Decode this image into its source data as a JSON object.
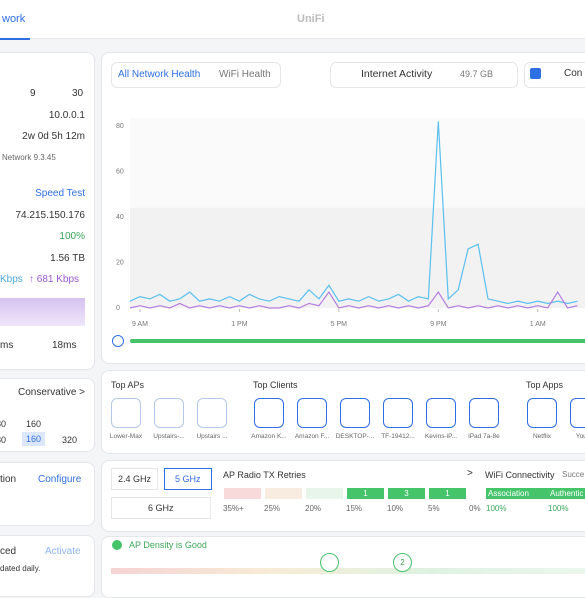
{
  "top_bar": {
    "tab": "work",
    "brand": "UniFi"
  },
  "left_panel": {
    "clients": "9",
    "aps": "30",
    "gateway_ip": "10.0.0.1",
    "uptime": "2w 0d 5h 12m",
    "version": "Network 9.3.45",
    "speed_test": "Speed Test",
    "wan_ip": "74.215.150.176",
    "availability": "100%",
    "usage": "1.56 TB",
    "download": "Kbps",
    "upload": "↑ 681 Kbps",
    "latency_a": "ms",
    "latency_b": "18ms",
    "mode": "Conservative >",
    "channels_a": [
      "80",
      "160"
    ],
    "channels_b": [
      "80",
      "160",
      "320"
    ],
    "section_a": "tion",
    "configure": "Configure",
    "section_b": "ced",
    "activate": "Activate",
    "note": "dated daily."
  },
  "health_tabs": [
    "All Network Health",
    "WiFi Health"
  ],
  "activity": {
    "label": "Internet Activity",
    "total": "49.7 GB",
    "compare": "Con"
  },
  "chart_data": {
    "type": "line",
    "xlim": [
      8.6,
      26.9
    ],
    "ylim": [
      0,
      80
    ],
    "yticks": [
      0,
      20,
      40,
      60,
      80
    ],
    "xticks": [
      {
        "value": 9,
        "label": "9 AM"
      },
      {
        "value": 13,
        "label": "1 PM"
      },
      {
        "value": 17,
        "label": "5 PM"
      },
      {
        "value": 21,
        "label": "9 PM"
      },
      {
        "value": 25,
        "label": "1 AM"
      }
    ],
    "x": [
      8.6,
      9.0,
      9.4,
      9.8,
      10.2,
      10.6,
      11.0,
      11.4,
      11.8,
      12.2,
      12.6,
      13.0,
      13.4,
      13.8,
      14.2,
      14.6,
      15.0,
      15.4,
      15.8,
      16.2,
      16.6,
      17.0,
      17.4,
      17.8,
      18.2,
      18.6,
      19.0,
      19.4,
      19.8,
      20.2,
      20.6,
      21.0,
      21.4,
      21.8,
      22.2,
      22.6,
      23.0,
      23.4,
      23.8,
      24.2,
      24.6,
      25.0,
      25.4,
      25.8,
      26.2,
      26.6
    ],
    "series": [
      {
        "color": "#5bbff0",
        "values": [
          3,
          5,
          4,
          6,
          3,
          4,
          7,
          3,
          4,
          3,
          5,
          3,
          6,
          4,
          3,
          5,
          4,
          3,
          8,
          4,
          10,
          3,
          4,
          3,
          5,
          3,
          4,
          6,
          3,
          5,
          4,
          82,
          4,
          8,
          26,
          28,
          4,
          3,
          2,
          3,
          2,
          3,
          2,
          3,
          2,
          3
        ]
      },
      {
        "color": "#b57be0",
        "values": [
          0,
          1,
          0,
          1,
          0,
          2,
          0,
          1,
          0,
          1,
          0,
          1,
          0,
          1,
          0,
          0,
          1,
          0,
          2,
          1,
          7,
          0,
          1,
          0,
          1,
          0,
          1,
          0,
          1,
          0,
          1,
          7,
          0,
          1,
          0,
          1,
          0,
          1,
          0,
          1,
          0,
          1,
          0,
          7,
          0,
          1
        ]
      }
    ]
  },
  "top_aps": {
    "title": "Top APs",
    "items": [
      "Lower-Max",
      "Upstairs-...",
      "Upstairs ..."
    ]
  },
  "top_clients": {
    "title": "Top Clients",
    "items": [
      "Amazon K...",
      "Amazon F...",
      "DESKTOP-...",
      "TF-19412...",
      "Kevins-iP...",
      "iPad 7a-8e"
    ]
  },
  "top_apps": {
    "title": "Top Apps",
    "items": [
      "Netflix",
      "YouTu"
    ]
  },
  "wifi": {
    "bands": [
      "2.4 GHz",
      "5 GHz",
      "6 GHz"
    ],
    "retries_title": "AP Radio TX Retries",
    "more": ">",
    "retry_counts": [
      "1",
      "3",
      "1"
    ],
    "retry_axis": [
      "35%+",
      "25%",
      "20%",
      "15%",
      "10%",
      "5%",
      "0%"
    ],
    "connectivity_title": "WiFi Connectivity",
    "connectivity_state": "Succe",
    "stages": [
      "Association",
      "Authentic"
    ],
    "stage_values": [
      "100%",
      "100%"
    ],
    "density": "AP Density is Good",
    "density_marker": "2"
  }
}
